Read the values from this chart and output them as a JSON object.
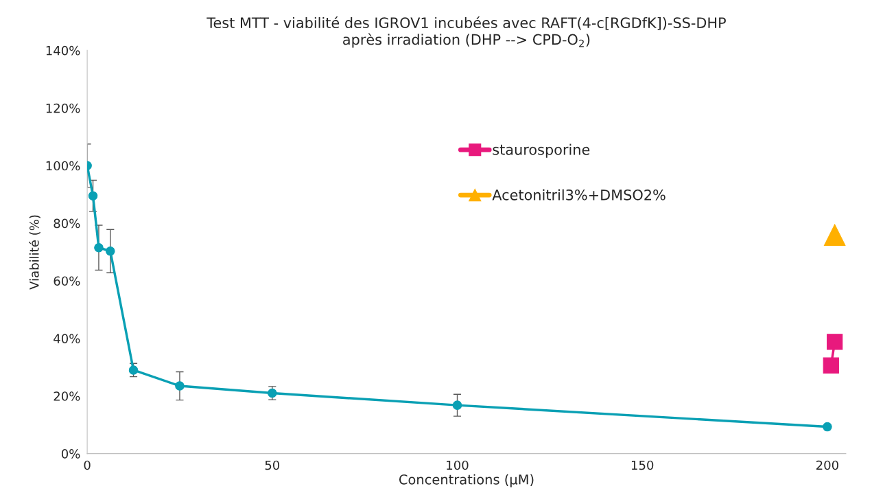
{
  "chart_data": {
    "type": "line",
    "title": "Test MTT - viabilité des IGROV1 incubées avec RAFT(4-c[RGDfK])-SS-DHP\naprès irradiation (DHP --> CPD-O$_{2}$)",
    "xlabel": "Concentrations (µM)",
    "ylabel": "Viabilité (%)",
    "xlim": [
      0,
      205
    ],
    "xticks": [
      0,
      50,
      100,
      150,
      200
    ],
    "ylim": [
      0,
      140
    ],
    "yticks": [
      {
        "value": 0,
        "label": "0%"
      },
      {
        "value": 20,
        "label": "20%"
      },
      {
        "value": 40,
        "label": "40%"
      },
      {
        "value": 60,
        "label": "60%"
      },
      {
        "value": 80,
        "label": "80%"
      },
      {
        "value": 100,
        "label": "100%"
      },
      {
        "value": 120,
        "label": "120%"
      },
      {
        "value": 140,
        "label": "140%"
      }
    ],
    "grid": false,
    "legend": "top right",
    "series": [
      {
        "color": "#0aa0b4",
        "marker": "circle",
        "x": [
          0,
          1.56,
          3.125,
          6.25,
          12.5,
          25,
          50,
          100,
          200
        ],
        "values": [
          100,
          89.5,
          71.5,
          70.3,
          29,
          23.5,
          21,
          16.8,
          9.3
        ],
        "errors": [
          7.5,
          5.4,
          7.8,
          7.5,
          2.3,
          4.9,
          2.3,
          3.8,
          null
        ]
      },
      {
        "name": "staurosporine",
        "color": "#e8197d",
        "marker": "square",
        "x": [
          202,
          201
        ],
        "values": [
          38.8,
          30.6
        ]
      },
      {
        "name": "Acetonitril3%+DMSO2%",
        "color": "#ffb000",
        "marker": "triangle",
        "x": [
          202
        ],
        "values": [
          75.9
        ]
      }
    ]
  }
}
